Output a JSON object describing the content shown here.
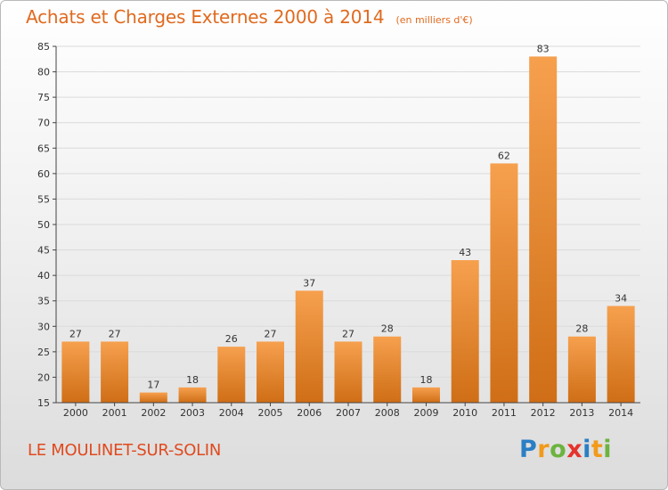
{
  "title": "Achats et Charges Externes 2000 à 2014",
  "unit": "(en milliers d'€)",
  "commune": "LE MOULINET-SUR-SOLIN",
  "logo": {
    "letters": [
      "P",
      "r",
      "o",
      "x",
      "i",
      "t",
      "i"
    ],
    "colors": [
      "#2a7fc4",
      "#f29a1b",
      "#6cb33f",
      "#e5322d",
      "#2a7fc4",
      "#f29a1b",
      "#6cb33f"
    ]
  },
  "colors": {
    "bar_light": "#f6a04e",
    "bar_dark": "#cf6e16",
    "title": "#e06a1f"
  },
  "chart_data": {
    "type": "bar",
    "categories": [
      "2000",
      "2001",
      "2002",
      "2003",
      "2004",
      "2005",
      "2006",
      "2007",
      "2008",
      "2009",
      "2010",
      "2011",
      "2012",
      "2013",
      "2014"
    ],
    "values": [
      27,
      27,
      17,
      18,
      26,
      27,
      37,
      27,
      28,
      18,
      43,
      62,
      83,
      28,
      34
    ],
    "title": "Achats et Charges Externes 2000 à 2014",
    "ylim": [
      15,
      85
    ],
    "yticks": [
      15,
      20,
      25,
      30,
      35,
      40,
      45,
      50,
      55,
      60,
      65,
      70,
      75,
      80,
      85
    ],
    "grid": true,
    "data_labels": true
  }
}
